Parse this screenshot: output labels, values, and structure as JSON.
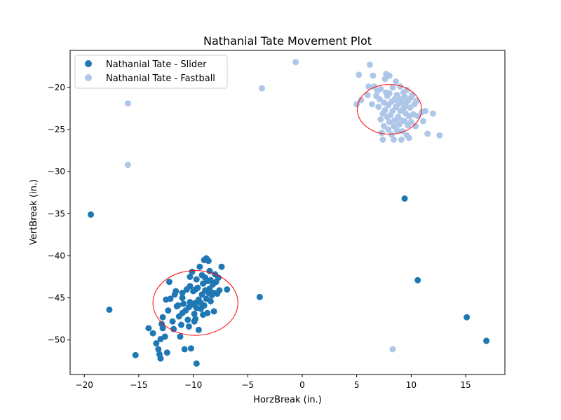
{
  "chart_data": {
    "type": "scatter",
    "title": "Nathanial Tate Movement Plot",
    "xlabel": "HorzBreak (in.)",
    "ylabel": "VertBreak (in.)",
    "xlim": [
      -21.3,
      18.6
    ],
    "ylim": [
      -54.1,
      -15.6
    ],
    "xticks": [
      -20,
      -15,
      -10,
      -5,
      0,
      5,
      10,
      15
    ],
    "yticks": [
      -50,
      -45,
      -40,
      -35,
      -30,
      -25,
      -20
    ],
    "grid": false,
    "legend_position": "top-left",
    "series": [
      {
        "name": "Nathanial Tate - Slider",
        "color": "#1f77b4",
        "points": [
          [
            -19.4,
            -35.1
          ],
          [
            -17.7,
            -46.4
          ],
          [
            -15.3,
            -51.8
          ],
          [
            -14.1,
            -48.6
          ],
          [
            -13.7,
            -49.2
          ],
          [
            -13.4,
            -50.4
          ],
          [
            -13.2,
            -51.1
          ],
          [
            -13.1,
            -51.7
          ],
          [
            -13.0,
            -52.2
          ],
          [
            -13.0,
            -49.9
          ],
          [
            -12.9,
            -48.1
          ],
          [
            -12.8,
            -48.6
          ],
          [
            -12.8,
            -47.3
          ],
          [
            -12.6,
            -49.6
          ],
          [
            -12.4,
            -51.5
          ],
          [
            -12.5,
            -45.2
          ],
          [
            -12.2,
            -43.1
          ],
          [
            -12.3,
            -46.5
          ],
          [
            -12.1,
            -45.1
          ],
          [
            -11.9,
            -47.8
          ],
          [
            -11.8,
            -48.7
          ],
          [
            -11.7,
            -44.6
          ],
          [
            -11.6,
            -44.2
          ],
          [
            -11.5,
            -46.0
          ],
          [
            -11.4,
            -45.9
          ],
          [
            -11.3,
            -47.2
          ],
          [
            -11.2,
            -49.6
          ],
          [
            -11.1,
            -48.2
          ],
          [
            -11.0,
            -46.8
          ],
          [
            -11.0,
            -45.0
          ],
          [
            -11.0,
            -44.4
          ],
          [
            -10.9,
            -45.7
          ],
          [
            -10.8,
            -51.1
          ],
          [
            -10.7,
            -46.5
          ],
          [
            -10.6,
            -44.0
          ],
          [
            -10.5,
            -47.6
          ],
          [
            -10.4,
            -46.1
          ],
          [
            -10.4,
            -48.4
          ],
          [
            -10.3,
            -45.5
          ],
          [
            -10.3,
            -43.6
          ],
          [
            -10.3,
            -42.5
          ],
          [
            -10.2,
            -51.0
          ],
          [
            -10.1,
            -41.9
          ],
          [
            -10.0,
            -45.8
          ],
          [
            -10.0,
            -44.2
          ],
          [
            -9.9,
            -47.8
          ],
          [
            -9.9,
            -46.9
          ],
          [
            -9.8,
            -45.6
          ],
          [
            -9.8,
            -44.0
          ],
          [
            -9.8,
            -47.5
          ],
          [
            -9.7,
            -42.8
          ],
          [
            -9.7,
            -46.2
          ],
          [
            -9.7,
            -52.8
          ],
          [
            -9.6,
            -43.8
          ],
          [
            -9.5,
            -45.2
          ],
          [
            -9.5,
            -48.8
          ],
          [
            -9.4,
            -41.3
          ],
          [
            -9.3,
            -46.3
          ],
          [
            -9.3,
            -45.6
          ],
          [
            -9.2,
            -42.3
          ],
          [
            -9.2,
            -44.6
          ],
          [
            -9.1,
            -47.0
          ],
          [
            -9.1,
            -43.3
          ],
          [
            -9.0,
            -45.9
          ],
          [
            -9.0,
            -40.5
          ],
          [
            -8.9,
            -42.6
          ],
          [
            -8.9,
            -44.1
          ],
          [
            -8.8,
            -40.3
          ],
          [
            -8.8,
            -45.1
          ],
          [
            -8.7,
            -43.0
          ],
          [
            -8.7,
            -46.8
          ],
          [
            -8.6,
            -40.6
          ],
          [
            -8.6,
            -44.4
          ],
          [
            -8.5,
            -43.9
          ],
          [
            -8.5,
            -41.8
          ],
          [
            -8.4,
            -45.4
          ],
          [
            -8.4,
            -42.9
          ],
          [
            -8.3,
            -44.7
          ],
          [
            -8.2,
            -43.4
          ],
          [
            -8.1,
            -44.4
          ],
          [
            -8.1,
            -46.6
          ],
          [
            -8.0,
            -42.2
          ],
          [
            -7.9,
            -43.1
          ],
          [
            -7.8,
            -44.5
          ],
          [
            -7.7,
            -42.6
          ],
          [
            -7.6,
            -44.1
          ],
          [
            -7.4,
            -41.3
          ],
          [
            -6.9,
            -44.0
          ],
          [
            -3.9,
            -44.9
          ],
          [
            9.4,
            -33.2
          ],
          [
            10.6,
            -42.9
          ],
          [
            15.1,
            -47.3
          ],
          [
            16.9,
            -50.1
          ]
        ]
      },
      {
        "name": "Nathanial Tate - Fastball",
        "color": "#aec7e8",
        "points": [
          [
            -16.0,
            -21.9
          ],
          [
            -16.0,
            -29.2
          ],
          [
            -3.7,
            -20.1
          ],
          [
            -0.6,
            -17.0
          ],
          [
            8.3,
            -51.1
          ],
          [
            5.0,
            -22.0
          ],
          [
            5.2,
            -18.5
          ],
          [
            5.4,
            -21.5
          ],
          [
            6.0,
            -20.9
          ],
          [
            6.1,
            -19.9
          ],
          [
            6.2,
            -17.3
          ],
          [
            6.4,
            -22.0
          ],
          [
            6.5,
            -18.6
          ],
          [
            6.6,
            -19.9
          ],
          [
            6.8,
            -21.0
          ],
          [
            6.9,
            -20.4
          ],
          [
            7.0,
            -22.3
          ],
          [
            7.1,
            -21.4
          ],
          [
            7.2,
            -23.8
          ],
          [
            7.2,
            -20.2
          ],
          [
            7.3,
            -25.4
          ],
          [
            7.4,
            -26.2
          ],
          [
            7.4,
            -23.1
          ],
          [
            7.5,
            -24.6
          ],
          [
            7.5,
            -21.8
          ],
          [
            7.6,
            -19.0
          ],
          [
            7.6,
            -22.7
          ],
          [
            7.7,
            -18.4
          ],
          [
            7.7,
            -20.6
          ],
          [
            7.8,
            -23.5
          ],
          [
            7.8,
            -21.0
          ],
          [
            7.9,
            -25.0
          ],
          [
            7.9,
            -22.1
          ],
          [
            8.0,
            -18.6
          ],
          [
            8.0,
            -24.1
          ],
          [
            8.0,
            -20.7
          ],
          [
            8.1,
            -23.3
          ],
          [
            8.2,
            -21.7
          ],
          [
            8.2,
            -25.6
          ],
          [
            8.3,
            -22.8
          ],
          [
            8.3,
            -20.0
          ],
          [
            8.4,
            -26.2
          ],
          [
            8.4,
            -24.6
          ],
          [
            8.5,
            -21.4
          ],
          [
            8.5,
            -23.9
          ],
          [
            8.6,
            -22.3
          ],
          [
            8.6,
            -19.3
          ],
          [
            8.7,
            -25.1
          ],
          [
            8.7,
            -20.9
          ],
          [
            8.8,
            -23.5
          ],
          [
            8.8,
            -22.0
          ],
          [
            8.9,
            -24.4
          ],
          [
            8.9,
            -21.3
          ],
          [
            9.0,
            -22.8
          ],
          [
            9.0,
            -19.9
          ],
          [
            9.1,
            -26.2
          ],
          [
            9.1,
            -23.9
          ],
          [
            9.2,
            -21.8
          ],
          [
            9.2,
            -25.2
          ],
          [
            9.3,
            -22.5
          ],
          [
            9.3,
            -20.6
          ],
          [
            9.4,
            -24.0
          ],
          [
            9.4,
            -21.1
          ],
          [
            9.5,
            -23.1
          ],
          [
            9.5,
            -22.2
          ],
          [
            9.6,
            -25.7
          ],
          [
            9.6,
            -20.3
          ],
          [
            9.7,
            -24.5
          ],
          [
            9.7,
            -21.6
          ],
          [
            9.8,
            -23.4
          ],
          [
            9.8,
            -26.0
          ],
          [
            9.9,
            -22.4
          ],
          [
            10.0,
            -21.2
          ],
          [
            10.0,
            -24.1
          ],
          [
            10.1,
            -20.9
          ],
          [
            10.2,
            -23.2
          ],
          [
            10.3,
            -22.0
          ],
          [
            10.4,
            -24.6
          ],
          [
            10.5,
            -21.6
          ],
          [
            10.6,
            -23.4
          ],
          [
            11.0,
            -22.9
          ],
          [
            11.1,
            -24.0
          ],
          [
            11.3,
            -22.8
          ],
          [
            11.5,
            -25.5
          ],
          [
            12.0,
            -23.1
          ],
          [
            12.6,
            -25.7
          ]
        ]
      }
    ],
    "ellipses": [
      {
        "series": "Nathanial Tate - Slider",
        "center": [
          -9.8,
          -45.6
        ],
        "width": 7.8,
        "height": 7.7,
        "color": "#ff0000"
      },
      {
        "series": "Nathanial Tate - Fastball",
        "center": [
          8.0,
          -22.6
        ],
        "width": 5.9,
        "height": 5.9,
        "color": "#ff0000"
      }
    ]
  }
}
